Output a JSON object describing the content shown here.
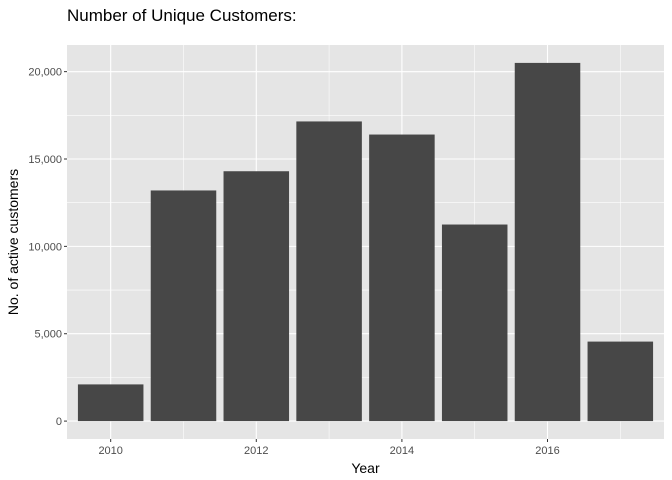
{
  "chart_data": {
    "type": "bar",
    "title": "Number of Unique Customers:",
    "xlabel": "Year",
    "ylabel": "No. of active customers",
    "categories": [
      2010,
      2011,
      2012,
      2013,
      2014,
      2015,
      2016,
      2017
    ],
    "values": [
      2100,
      13200,
      14300,
      17150,
      16400,
      11250,
      20500,
      4550
    ],
    "x_ticks": [
      2010,
      2012,
      2014,
      2016
    ],
    "x_tick_labels": [
      "2010",
      "2012",
      "2014",
      "2016"
    ],
    "y_ticks": [
      0,
      5000,
      10000,
      15000,
      20000
    ],
    "y_tick_labels": [
      "0",
      "5,000",
      "10,000",
      "15,000",
      "20,000"
    ],
    "xlim": [
      2009.4,
      2017.6
    ],
    "ylim": [
      -1025,
      21525
    ],
    "grid": true,
    "colors": {
      "panel_background": "#e5e5e5",
      "grid": "#ffffff",
      "bar": "#474747",
      "tick": "#333333",
      "tick_text": "#4d4d4d"
    }
  }
}
